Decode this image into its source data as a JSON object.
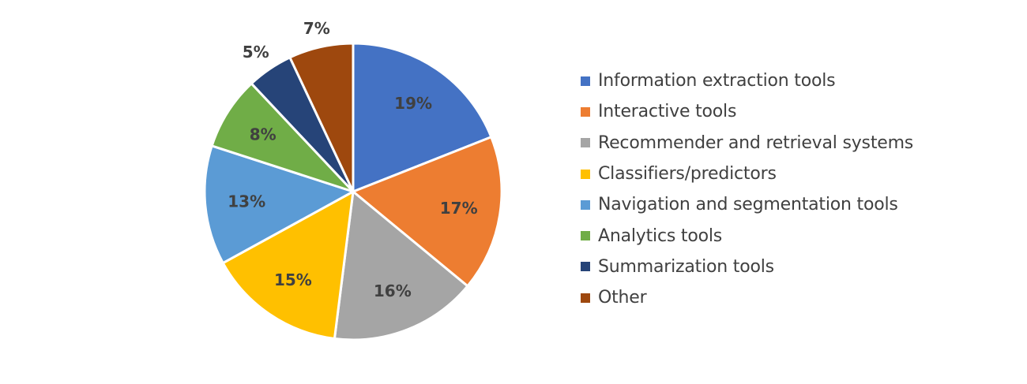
{
  "chart_data": {
    "type": "pie",
    "title": "",
    "slices": [
      {
        "label": "Information extraction tools",
        "value": 19,
        "display": "19%",
        "color": "#4472C4"
      },
      {
        "label": "Interactive tools",
        "value": 17,
        "display": "17%",
        "color": "#ED7D31"
      },
      {
        "label": "Recommender and retrieval systems",
        "value": 16,
        "display": "16%",
        "color": "#A5A5A5"
      },
      {
        "label": "Classifiers/predictors",
        "value": 15,
        "display": "15%",
        "color": "#FFC000"
      },
      {
        "label": "Navigation and segmentation tools",
        "value": 13,
        "display": "13%",
        "color": "#5B9BD5"
      },
      {
        "label": "Analytics tools",
        "value": 8,
        "display": "8%",
        "color": "#70AD47"
      },
      {
        "label": "Summarization tools",
        "value": 5,
        "display": "5%",
        "color": "#264478"
      },
      {
        "label": "Other",
        "value": 7,
        "display": "7%",
        "color": "#9E480E"
      }
    ],
    "start_angle": "12 o'clock",
    "direction": "clockwise",
    "legend": "right",
    "label_color": "#404040",
    "border_color": "#FFFFFF"
  }
}
